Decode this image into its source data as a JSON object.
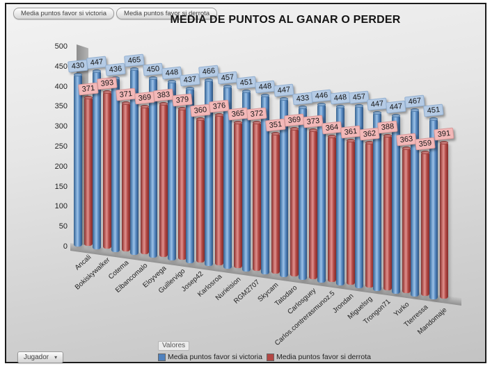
{
  "window": {
    "top_buttons": [
      {
        "label": "Media puntos favor si victoria"
      },
      {
        "label": "Media puntos favor si derrota"
      }
    ],
    "jugador_dropdown": {
      "label": "Jugador",
      "caret": "▾"
    }
  },
  "legend": {
    "box_label": "Valores",
    "items": [
      {
        "label": "Media puntos favor si victoria",
        "color": "#4f81bd"
      },
      {
        "label": "Media puntos favor si derrota",
        "color": "#b24744"
      }
    ]
  },
  "chart_data": {
    "type": "bar",
    "style": "3d-cylinder",
    "title": "MEDIA DE PUNTOS AL GANAR O PERDER",
    "categories": [
      "Ancali",
      "Bokiskywalker",
      "Cotema",
      "Elbancomalo",
      "Eloyvega",
      "Guillervigo",
      "Josep42",
      "Karlosroa",
      "Nurieision",
      "RGM2707",
      "Skycam",
      "Tatodaro",
      "Carlosguey",
      "Carlos.contrerasmunoz.5",
      "Jrondan",
      "Miguelsrg",
      "Trongon71",
      "Yurko",
      "Tterressa",
      "Mandomaje"
    ],
    "series": [
      {
        "name": "Media puntos favor si victoria",
        "color": "#4f81bd",
        "label_bg": "#b5cbe5",
        "values": [
          430,
          447,
          436,
          465,
          450,
          448,
          437,
          466,
          457,
          451,
          448,
          447,
          433,
          446,
          448,
          457,
          447,
          447,
          467,
          451
        ]
      },
      {
        "name": "Media puntos favor si derrota",
        "color": "#b24744",
        "label_bg": "#f3b8b8",
        "values": [
          371,
          393,
          371,
          369,
          383,
          379,
          360,
          376,
          365,
          372,
          351,
          369,
          373,
          364,
          361,
          362,
          388,
          363,
          359,
          391
        ]
      }
    ],
    "ylim": [
      0,
      500
    ],
    "ytick_step": 50,
    "legend_position": "bottom",
    "grid": false
  }
}
